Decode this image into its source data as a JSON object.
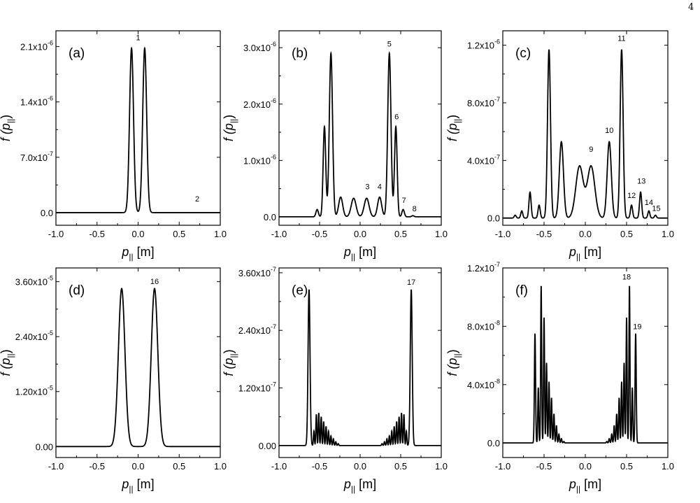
{
  "page_number": "4",
  "chart_data": [
    {
      "type": "line",
      "panel_label": "(a)",
      "xlabel": "p_|| [m]",
      "ylabel": "f (p_||)",
      "xlim": [
        -1.0,
        1.0
      ],
      "ylim": [
        -1.6e-07,
        2.3e-06
      ],
      "xticks": [
        -1.0,
        -0.5,
        0.0,
        0.5,
        1.0
      ],
      "xtick_labels": [
        "-1.0",
        "-0.5",
        "0.0",
        "0.5",
        "1.0"
      ],
      "yticks": [
        0,
        7e-07,
        1.4e-06,
        2.1e-06
      ],
      "ytick_labels": [
        {
          "m": "0.0",
          "e": ""
        },
        {
          "m": "7.0x10",
          "e": "-7"
        },
        {
          "m": "1.4x10",
          "e": "-6"
        },
        {
          "m": "2.1x10",
          "e": "-6"
        }
      ],
      "series": [
        {
          "peaks": [
            {
              "c": -0.08,
              "h": 2.08e-06,
              "w": 0.024
            },
            {
              "c": 0.08,
              "h": 2.08e-06,
              "w": 0.024
            }
          ]
        }
      ],
      "annotations": [
        {
          "text": "1",
          "x": 0.0,
          "y": 2.18e-06
        },
        {
          "text": "2",
          "x": 0.72,
          "y": 1.4e-07
        }
      ]
    },
    {
      "type": "line",
      "panel_label": "(b)",
      "xlabel": "p_|| [m]",
      "ylabel": "f (p_||)",
      "xlim": [
        -1.0,
        1.0
      ],
      "ylim": [
        -1.5e-07,
        3.3e-06
      ],
      "xticks": [
        -1.0,
        -0.5,
        0.0,
        0.5,
        1.0
      ],
      "xtick_labels": [
        "-1.0",
        "-0.5",
        "0.0",
        "0.5",
        "1.0"
      ],
      "yticks": [
        0,
        1e-06,
        2e-06,
        3e-06
      ],
      "ytick_labels": [
        {
          "m": "0.0",
          "e": ""
        },
        {
          "m": "1.0x10",
          "e": "-6"
        },
        {
          "m": "2.0x10",
          "e": "-6"
        },
        {
          "m": "3.0x10",
          "e": "-6"
        }
      ],
      "series": [
        {
          "peaks": [
            {
              "c": -0.53,
              "h": 1.3e-07,
              "w": 0.015
            },
            {
              "c": -0.44,
              "h": 1.6e-06,
              "w": 0.016
            },
            {
              "c": -0.36,
              "h": 2.9e-06,
              "w": 0.02
            },
            {
              "c": -0.24,
              "h": 3.5e-07,
              "w": 0.025
            },
            {
              "c": -0.08,
              "h": 3.3e-07,
              "w": 0.03
            },
            {
              "c": 0.08,
              "h": 3.3e-07,
              "w": 0.03
            },
            {
              "c": 0.24,
              "h": 3.5e-07,
              "w": 0.025
            },
            {
              "c": 0.36,
              "h": 2.9e-06,
              "w": 0.02
            },
            {
              "c": 0.44,
              "h": 1.6e-06,
              "w": 0.016
            },
            {
              "c": 0.53,
              "h": 1.3e-07,
              "w": 0.015
            },
            {
              "c": 0.65,
              "h": 2e-08,
              "w": 0.015
            }
          ]
        }
      ],
      "annotations": [
        {
          "text": "3",
          "x": 0.09,
          "y": 4.9e-07
        },
        {
          "text": "4",
          "x": 0.24,
          "y": 4.9e-07
        },
        {
          "text": "5",
          "x": 0.36,
          "y": 3.02e-06
        },
        {
          "text": "6",
          "x": 0.45,
          "y": 1.73e-06
        },
        {
          "text": "7",
          "x": 0.54,
          "y": 2.5e-07
        },
        {
          "text": "8",
          "x": 0.67,
          "y": 1e-07
        }
      ]
    },
    {
      "type": "line",
      "panel_label": "(c)",
      "xlabel": "p_|| [m]",
      "ylabel": "f (p_||)",
      "xlim": [
        -1.0,
        1.0
      ],
      "ylim": [
        -5e-08,
        1.3e-06
      ],
      "xticks": [
        -1.0,
        -0.5,
        0.0,
        0.5,
        1.0
      ],
      "xtick_labels": [
        "-1.0",
        "-0.5",
        "0.0",
        "0.5",
        "1.0"
      ],
      "yticks": [
        0,
        4e-07,
        8e-07,
        1.2e-06
      ],
      "ytick_labels": [
        {
          "m": "0.0",
          "e": ""
        },
        {
          "m": "4.0x10",
          "e": "-7"
        },
        {
          "m": "8.0x10",
          "e": "-7"
        },
        {
          "m": "1.2x10",
          "e": "-6"
        }
      ],
      "series": [
        {
          "peaks": [
            {
              "c": -0.85,
              "h": 2e-08,
              "w": 0.012
            },
            {
              "c": -0.77,
              "h": 5e-08,
              "w": 0.012
            },
            {
              "c": -0.67,
              "h": 1.8e-07,
              "w": 0.013
            },
            {
              "c": -0.56,
              "h": 9e-08,
              "w": 0.013
            },
            {
              "c": -0.44,
              "h": 1.17e-06,
              "w": 0.018
            },
            {
              "c": -0.29,
              "h": 5.3e-07,
              "w": 0.025
            },
            {
              "c": -0.07,
              "h": 3.6e-07,
              "w": 0.045
            },
            {
              "c": 0.07,
              "h": 3.6e-07,
              "w": 0.045
            },
            {
              "c": 0.29,
              "h": 5.3e-07,
              "w": 0.025
            },
            {
              "c": 0.44,
              "h": 1.17e-06,
              "w": 0.018
            },
            {
              "c": 0.56,
              "h": 9e-08,
              "w": 0.013
            },
            {
              "c": 0.67,
              "h": 1.8e-07,
              "w": 0.013
            },
            {
              "c": 0.77,
              "h": 5e-08,
              "w": 0.012
            },
            {
              "c": 0.85,
              "h": 2e-08,
              "w": 0.012
            }
          ]
        }
      ],
      "annotations": [
        {
          "text": "9",
          "x": 0.07,
          "y": 4.6e-07
        },
        {
          "text": "10",
          "x": 0.29,
          "y": 5.9e-07
        },
        {
          "text": "11",
          "x": 0.44,
          "y": 1.23e-06
        },
        {
          "text": "12",
          "x": 0.56,
          "y": 1.4e-07
        },
        {
          "text": "13",
          "x": 0.68,
          "y": 2.4e-07
        },
        {
          "text": "14",
          "x": 0.77,
          "y": 9e-08
        },
        {
          "text": "15",
          "x": 0.86,
          "y": 5e-08
        }
      ]
    },
    {
      "type": "line",
      "panel_label": "(d)",
      "xlabel": "p_|| [m]",
      "ylabel": "f (p_||)",
      "xlim": [
        -1.0,
        1.0
      ],
      "ylim": [
        -2.4e-06,
        3.9e-05
      ],
      "xticks": [
        -1.0,
        -0.5,
        0.0,
        0.5,
        1.0
      ],
      "xtick_labels": [
        "-1.0",
        "-0.5",
        "0.0",
        "0.5",
        "1.0"
      ],
      "yticks": [
        0,
        1.2e-05,
        2.4e-05,
        3.6e-05
      ],
      "ytick_labels": [
        {
          "m": "0.00",
          "e": ""
        },
        {
          "m": "1.20x10",
          "e": "-5"
        },
        {
          "m": "2.40x10",
          "e": "-5"
        },
        {
          "m": "3.60x10",
          "e": "-5"
        }
      ],
      "series": [
        {
          "peaks": [
            {
              "c": -0.2,
              "h": 3.45e-05,
              "w": 0.04
            },
            {
              "c": 0.2,
              "h": 3.45e-05,
              "w": 0.04
            }
          ]
        }
      ],
      "annotations": [
        {
          "text": "16",
          "x": 0.2,
          "y": 3.55e-05
        }
      ]
    },
    {
      "type": "line",
      "panel_label": "(e)",
      "xlabel": "p_|| [m]",
      "ylabel": "f (p_||)",
      "xlim": [
        -1.0,
        1.0
      ],
      "ylim": [
        -2.5e-08,
        3.7e-07
      ],
      "xticks": [
        -1.0,
        -0.5,
        0.0,
        0.5,
        1.0
      ],
      "xtick_labels": [
        "-1.0",
        "-0.5",
        "0.0",
        "0.5",
        "1.0"
      ],
      "yticks": [
        0,
        1.2e-07,
        2.4e-07,
        3.6e-07
      ],
      "ytick_labels": [
        {
          "m": "0.00",
          "e": ""
        },
        {
          "m": "1.20x10",
          "e": "-7"
        },
        {
          "m": "2.40x10",
          "e": "-7"
        },
        {
          "m": "3.60x10",
          "e": "-7"
        }
      ],
      "series": [
        {
          "peaks": [
            {
              "c": -0.63,
              "h": 3.25e-07,
              "w": 0.012
            },
            {
              "c": -0.57,
              "h": 3e-08,
              "w": 0.006
            },
            {
              "c": -0.54,
              "h": 6.5e-08,
              "w": 0.006
            },
            {
              "c": -0.51,
              "h": 6.8e-08,
              "w": 0.006
            },
            {
              "c": -0.48,
              "h": 6e-08,
              "w": 0.006
            },
            {
              "c": -0.45,
              "h": 5e-08,
              "w": 0.006
            },
            {
              "c": -0.42,
              "h": 4e-08,
              "w": 0.006
            },
            {
              "c": -0.39,
              "h": 3e-08,
              "w": 0.006
            },
            {
              "c": -0.36,
              "h": 2e-08,
              "w": 0.006
            },
            {
              "c": -0.33,
              "h": 1.4e-08,
              "w": 0.006
            },
            {
              "c": -0.3,
              "h": 8e-09,
              "w": 0.006
            },
            {
              "c": -0.27,
              "h": 4e-09,
              "w": 0.006
            },
            {
              "c": 0.27,
              "h": 4e-09,
              "w": 0.006
            },
            {
              "c": 0.3,
              "h": 8e-09,
              "w": 0.006
            },
            {
              "c": 0.33,
              "h": 1.4e-08,
              "w": 0.006
            },
            {
              "c": 0.36,
              "h": 2e-08,
              "w": 0.006
            },
            {
              "c": 0.39,
              "h": 3e-08,
              "w": 0.006
            },
            {
              "c": 0.42,
              "h": 4e-08,
              "w": 0.006
            },
            {
              "c": 0.45,
              "h": 5e-08,
              "w": 0.006
            },
            {
              "c": 0.48,
              "h": 6e-08,
              "w": 0.006
            },
            {
              "c": 0.51,
              "h": 6.8e-08,
              "w": 0.006
            },
            {
              "c": 0.54,
              "h": 6.5e-08,
              "w": 0.006
            },
            {
              "c": 0.57,
              "h": 3e-08,
              "w": 0.006
            },
            {
              "c": 0.63,
              "h": 3.25e-07,
              "w": 0.012
            }
          ]
        }
      ],
      "annotations": [
        {
          "text": "17",
          "x": 0.63,
          "y": 3.35e-07
        }
      ]
    },
    {
      "type": "line",
      "panel_label": "(f)",
      "xlabel": "p_|| [m]",
      "ylabel": "f (p_||)",
      "xlim": [
        -1.0,
        1.0
      ],
      "ylim": [
        -1e-08,
        1.2e-07
      ],
      "xticks": [
        -1.0,
        -0.5,
        0.0,
        0.5,
        1.0
      ],
      "xtick_labels": [
        "-1.0",
        "-0.5",
        "0.0",
        "0.5",
        "1.0"
      ],
      "yticks": [
        0,
        4e-08,
        8e-08,
        1.2e-07
      ],
      "ytick_labels": [
        {
          "m": "0.0",
          "e": ""
        },
        {
          "m": "4.0x10",
          "e": "-8"
        },
        {
          "m": "8.0x10",
          "e": "-8"
        },
        {
          "m": "1.2x10",
          "e": "-7"
        }
      ],
      "series": [
        {
          "peaks": [
            {
              "c": -0.61,
              "h": 7.5e-08,
              "w": 0.007
            },
            {
              "c": -0.57,
              "h": 3.8e-08,
              "w": 0.006
            },
            {
              "c": -0.535,
              "h": 1.08e-07,
              "w": 0.006
            },
            {
              "c": -0.5,
              "h": 8.6e-08,
              "w": 0.006
            },
            {
              "c": -0.47,
              "h": 5.5e-08,
              "w": 0.006
            },
            {
              "c": -0.44,
              "h": 4.2e-08,
              "w": 0.006
            },
            {
              "c": -0.41,
              "h": 3.1e-08,
              "w": 0.006
            },
            {
              "c": -0.38,
              "h": 2e-08,
              "w": 0.006
            },
            {
              "c": -0.35,
              "h": 1.2e-08,
              "w": 0.006
            },
            {
              "c": -0.32,
              "h": 6e-09,
              "w": 0.006
            },
            {
              "c": -0.29,
              "h": 3e-09,
              "w": 0.006
            },
            {
              "c": -0.26,
              "h": 1e-09,
              "w": 0.006
            },
            {
              "c": 0.26,
              "h": 1e-09,
              "w": 0.006
            },
            {
              "c": 0.29,
              "h": 3e-09,
              "w": 0.006
            },
            {
              "c": 0.32,
              "h": 6e-09,
              "w": 0.006
            },
            {
              "c": 0.35,
              "h": 1.2e-08,
              "w": 0.006
            },
            {
              "c": 0.38,
              "h": 2e-08,
              "w": 0.006
            },
            {
              "c": 0.41,
              "h": 3.1e-08,
              "w": 0.006
            },
            {
              "c": 0.44,
              "h": 4.2e-08,
              "w": 0.006
            },
            {
              "c": 0.47,
              "h": 5.5e-08,
              "w": 0.006
            },
            {
              "c": 0.5,
              "h": 8.6e-08,
              "w": 0.006
            },
            {
              "c": 0.535,
              "h": 1.08e-07,
              "w": 0.006
            },
            {
              "c": 0.57,
              "h": 3.8e-08,
              "w": 0.006
            },
            {
              "c": 0.61,
              "h": 7.5e-08,
              "w": 0.007
            }
          ]
        }
      ],
      "annotations": [
        {
          "text": "18",
          "x": 0.5,
          "y": 1.12e-07
        },
        {
          "text": "19",
          "x": 0.63,
          "y": 7.8e-08
        }
      ]
    }
  ]
}
